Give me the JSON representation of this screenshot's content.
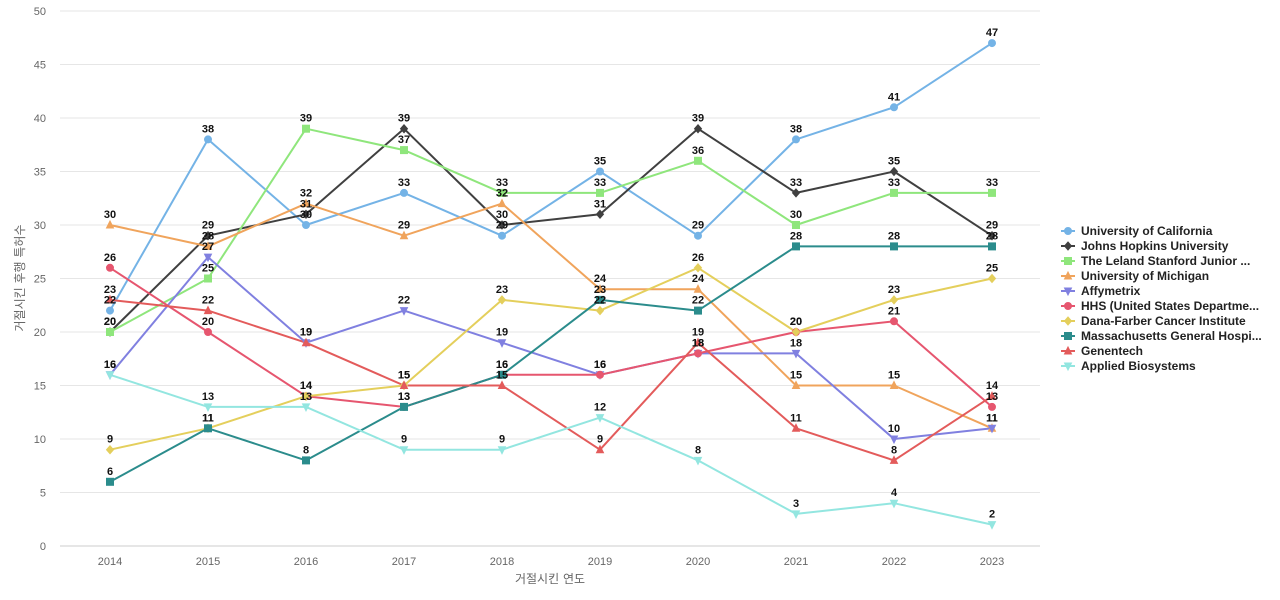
{
  "chart_data": {
    "type": "line",
    "title": "",
    "xlabel": "거절시킨 연도",
    "ylabel": "거절시킨 후행 특허수",
    "ylim": [
      0,
      50
    ],
    "yticks": [
      0,
      5,
      10,
      15,
      20,
      25,
      30,
      35,
      40,
      45,
      50
    ],
    "categories": [
      "2014",
      "2015",
      "2016",
      "2017",
      "2018",
      "2019",
      "2020",
      "2021",
      "2022",
      "2023"
    ],
    "grid": true,
    "legend_position": "right",
    "series": [
      {
        "name": "University of California",
        "color": "#74b3e6",
        "marker": "circle",
        "values": [
          22,
          38,
          30,
          33,
          29,
          35,
          29,
          38,
          41,
          47
        ]
      },
      {
        "name": "Johns Hopkins University",
        "color": "#404040",
        "marker": "diamond",
        "values": [
          20,
          29,
          31,
          39,
          30,
          31,
          39,
          33,
          35,
          29
        ]
      },
      {
        "name": "The Leland Stanford Junior ...",
        "color": "#8fe67c",
        "marker": "square",
        "values": [
          20,
          25,
          39,
          37,
          33,
          33,
          36,
          30,
          33,
          33
        ]
      },
      {
        "name": "University of Michigan",
        "color": "#f0a45c",
        "marker": "triangle-up",
        "values": [
          30,
          28,
          32,
          29,
          32,
          24,
          24,
          15,
          15,
          11
        ]
      },
      {
        "name": "Affymetrix",
        "color": "#8080e0",
        "marker": "triangle-down",
        "values": [
          16,
          27,
          19,
          22,
          19,
          16,
          18,
          18,
          10,
          11
        ]
      },
      {
        "name": "HHS (United States Departme...",
        "color": "#e6566f",
        "marker": "circle",
        "values": [
          26,
          20,
          14,
          13,
          16,
          16,
          18,
          20,
          21,
          13
        ]
      },
      {
        "name": "Dana-Farber Cancer Institute",
        "color": "#e4cf5c",
        "marker": "diamond",
        "values": [
          9,
          11,
          14,
          15,
          23,
          22,
          26,
          20,
          23,
          25
        ]
      },
      {
        "name": "Massachusetts General Hospi...",
        "color": "#2b8c8c",
        "marker": "square",
        "values": [
          6,
          11,
          8,
          13,
          16,
          23,
          22,
          28,
          28,
          28
        ]
      },
      {
        "name": "Genentech",
        "color": "#e35b5b",
        "marker": "triangle-up",
        "values": [
          23,
          22,
          19,
          15,
          15,
          9,
          19,
          11,
          8,
          14
        ]
      },
      {
        "name": "Applied Biosystems",
        "color": "#93e6e0",
        "marker": "triangle-down",
        "values": [
          16,
          13,
          13,
          9,
          9,
          12,
          8,
          3,
          4,
          2
        ]
      }
    ]
  }
}
